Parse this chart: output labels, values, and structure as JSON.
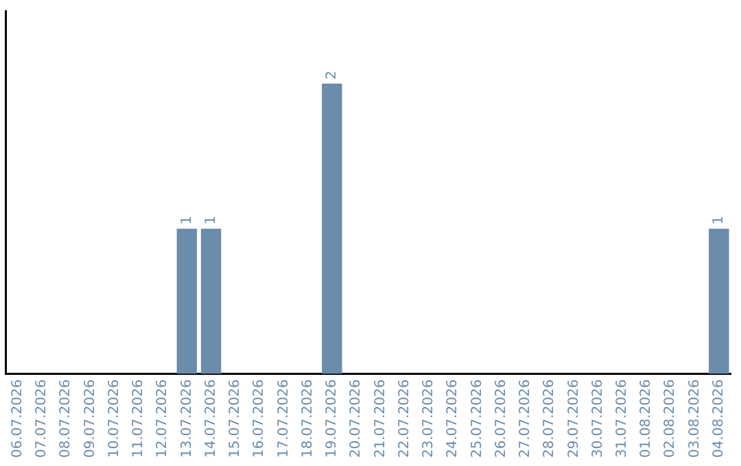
{
  "chart_data": {
    "type": "bar",
    "categories": [
      "06.07.2026",
      "07.07.2026",
      "08.07.2026",
      "09.07.2026",
      "10.07.2026",
      "11.07.2026",
      "12.07.2026",
      "13.07.2026",
      "14.07.2026",
      "15.07.2026",
      "16.07.2026",
      "17.07.2026",
      "18.07.2026",
      "19.07.2026",
      "20.07.2026",
      "21.07.2026",
      "22.07.2026",
      "23.07.2026",
      "24.07.2026",
      "25.07.2026",
      "26.07.2026",
      "27.07.2026",
      "28.07.2026",
      "29.07.2026",
      "30.07.2026",
      "31.07.2026",
      "01.08.2026",
      "02.08.2026",
      "03.08.2026",
      "04.08.2026"
    ],
    "values": [
      0,
      0,
      0,
      0,
      0,
      0,
      0,
      1,
      1,
      0,
      0,
      0,
      0,
      2,
      0,
      0,
      0,
      0,
      0,
      0,
      0,
      0,
      0,
      0,
      0,
      0,
      0,
      0,
      0,
      1
    ],
    "value_labels": [
      null,
      null,
      null,
      null,
      null,
      null,
      null,
      "1",
      "1",
      null,
      null,
      null,
      null,
      "2",
      null,
      null,
      null,
      null,
      null,
      null,
      null,
      null,
      null,
      null,
      null,
      null,
      null,
      null,
      null,
      "1"
    ],
    "color": "#6b8cab",
    "tick_labels": "x",
    "grid": false,
    "legend": false
  }
}
